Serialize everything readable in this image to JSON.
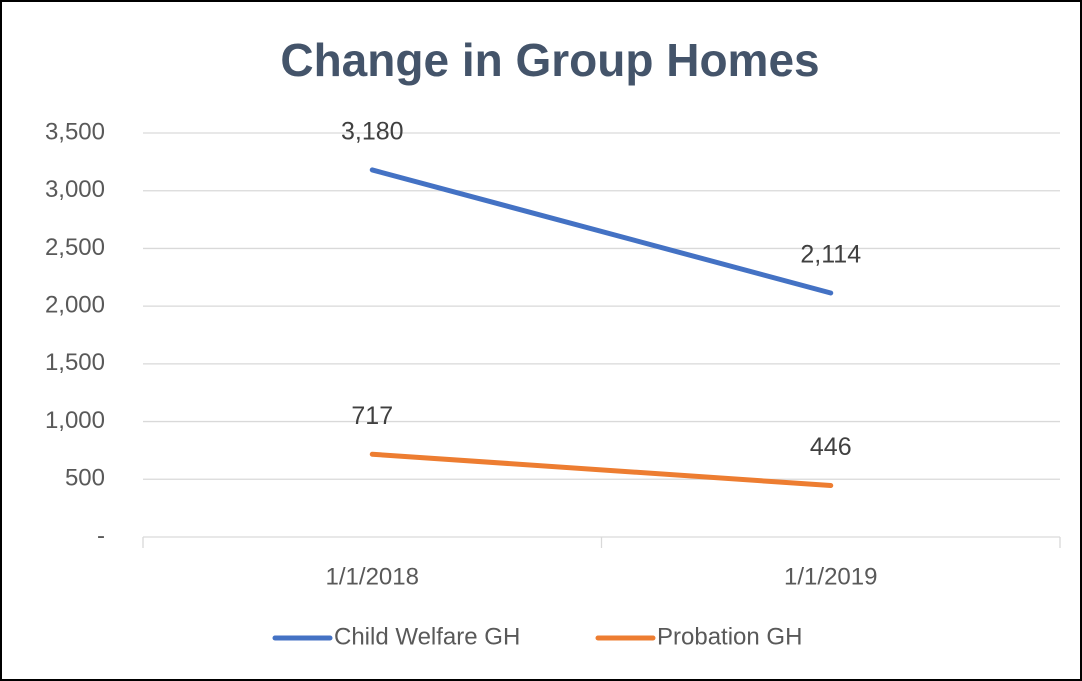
{
  "chart_data": {
    "type": "line",
    "title": "Change in Group Homes",
    "categories": [
      "1/1/2018",
      "1/1/2019"
    ],
    "series": [
      {
        "name": "Child Welfare GH",
        "color": "#4472c4",
        "values": [
          3180,
          2114
        ],
        "value_labels": [
          "3,180",
          "2,114"
        ]
      },
      {
        "name": "Probation GH",
        "color": "#ed7d31",
        "values": [
          717,
          446
        ]
      }
    ],
    "ylim": [
      0,
      3500
    ],
    "yticks": [
      {
        "value": 0,
        "label": "-"
      },
      500,
      {
        "value": 1000,
        "label": "1,000"
      },
      {
        "value": 1500,
        "label": "1,500"
      },
      {
        "value": 2000,
        "label": "2,000"
      },
      {
        "value": 2500,
        "label": "2,500"
      },
      {
        "value": 3000,
        "label": "3,000"
      },
      {
        "value": 3500,
        "label": "3,500"
      }
    ],
    "grid": true,
    "legend": "bottom"
  }
}
